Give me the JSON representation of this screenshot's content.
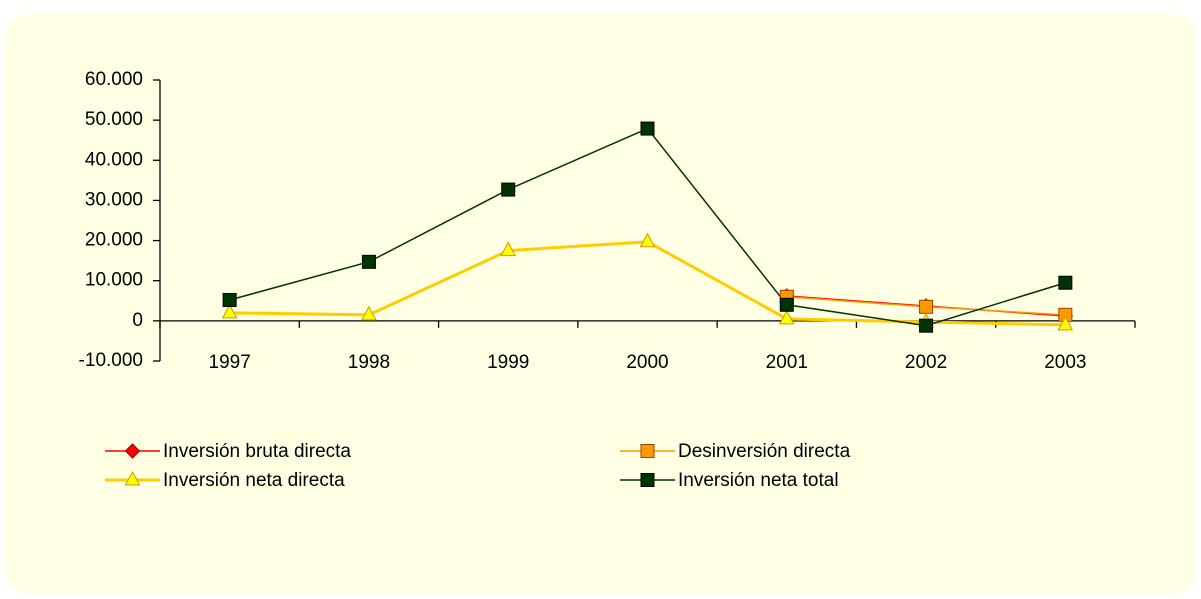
{
  "chart_data": {
    "type": "line",
    "categories": [
      "1997",
      "1998",
      "1999",
      "2000",
      "2001",
      "2002",
      "2003"
    ],
    "series": [
      {
        "name": "Inversión bruta directa",
        "color": "#ff0000",
        "marker": "diamond",
        "values": [
          null,
          null,
          null,
          null,
          6200,
          3700,
          1200
        ]
      },
      {
        "name": "Desinversión directa",
        "color": "#ff9900",
        "marker": "square",
        "values": [
          null,
          null,
          null,
          null,
          6000,
          3500,
          1500
        ]
      },
      {
        "name": "Inversión neta directa",
        "color": "#ffcc00",
        "marker": "triangle",
        "values": [
          2000,
          1500,
          17500,
          19700,
          500,
          -300,
          -1000
        ]
      },
      {
        "name": "Inversión neta total",
        "color": "#003300",
        "marker": "square",
        "values": [
          5200,
          14700,
          32700,
          47900,
          4000,
          -1200,
          9500
        ]
      }
    ],
    "ylim": [
      -10000,
      60000
    ],
    "yticks": [
      {
        "value": -10000,
        "label": "-10.000"
      },
      0,
      {
        "value": 10000,
        "label": "10.000"
      },
      {
        "value": 20000,
        "label": "20.000"
      },
      {
        "value": 30000,
        "label": "30.000"
      },
      {
        "value": 40000,
        "label": "40.000"
      },
      {
        "value": 50000,
        "label": "50.000"
      },
      {
        "value": 60000,
        "label": "60.000"
      }
    ],
    "grid": false,
    "legend": "bottom"
  }
}
